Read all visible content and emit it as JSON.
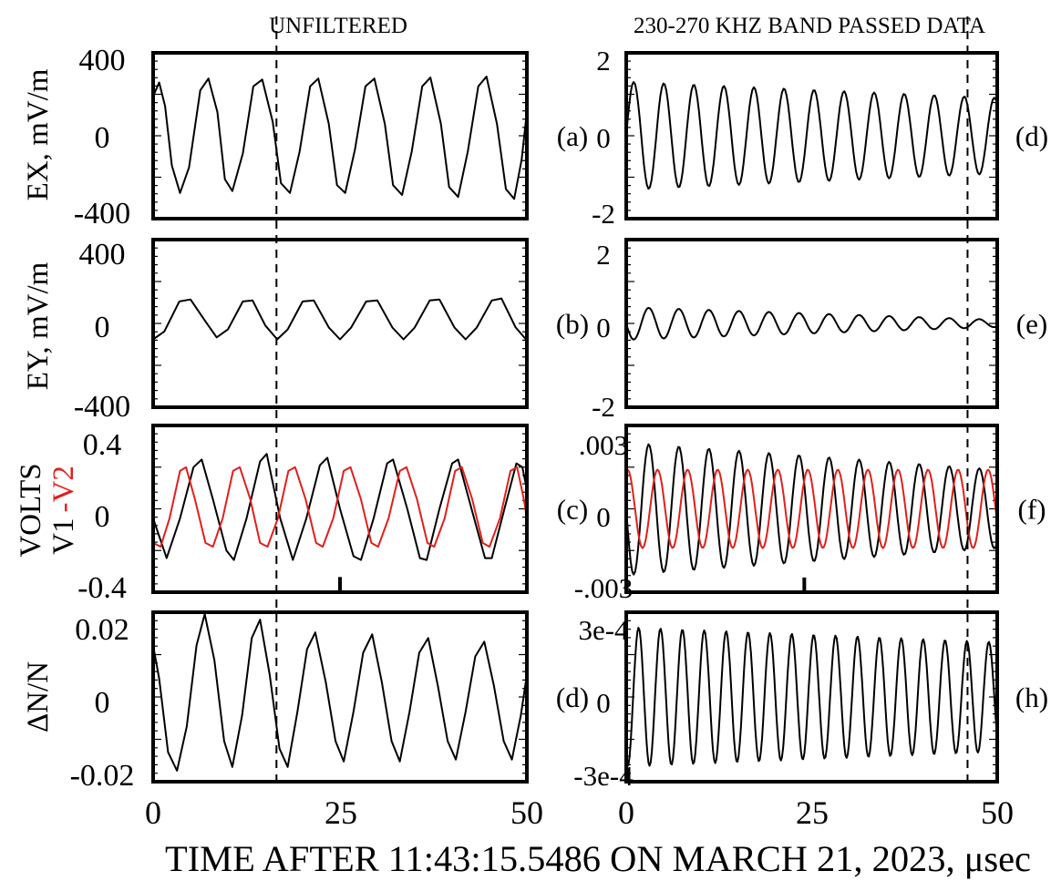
{
  "figure": {
    "left_title": "UNFILTERED",
    "right_title": "230-270 KHZ BAND PASSED DATA",
    "xlabel": "TIME AFTER 11:43:15.5486 ON MARCH 21, 2023, μsec",
    "xticks": [
      "0",
      "25",
      "50"
    ]
  },
  "rows": [
    {
      "ylabel": "EX, mV/m"
    },
    {
      "ylabel": "EY, mV/m"
    },
    {
      "ylabel_part1": "VOLTS",
      "ylabel_part2a": "V1",
      "ylabel_part2b": "-V2"
    },
    {
      "ylabel": "ΔN/N"
    }
  ],
  "panels": [
    {
      "id": "a",
      "label": "(a)",
      "yticks": [
        "400",
        "0",
        "-400"
      ]
    },
    {
      "id": "b",
      "label": "(b)",
      "yticks": [
        "400",
        "0",
        "-400"
      ]
    },
    {
      "id": "c",
      "label": "(c)",
      "yticks": [
        "0.4",
        "0",
        "-0.4"
      ]
    },
    {
      "id": "d1",
      "label": "(d)",
      "yticks": [
        "0.02",
        "0",
        "-0.02"
      ]
    },
    {
      "id": "d2",
      "label": "(d)",
      "yticks": [
        "2",
        "0",
        "-2"
      ]
    },
    {
      "id": "e",
      "label": "(e)",
      "yticks": [
        "2",
        "0",
        "-2"
      ]
    },
    {
      "id": "f",
      "label": "(f)",
      "yticks": [
        ".003",
        "0",
        "-.003"
      ]
    },
    {
      "id": "h",
      "label": "(h)",
      "yticks": [
        "3e-4",
        "0",
        "-3e-4"
      ]
    }
  ],
  "colors": {
    "v1": "#000000",
    "v2": "#e0201b",
    "axes": "#000000"
  },
  "chart_data": [
    {
      "type": "line",
      "panel": "a",
      "ylabel": "EX, mV/m",
      "xlim": [
        0,
        50
      ],
      "ylim": [
        -420,
        420
      ],
      "series": [
        {
          "values": [
            {
              "x": 0,
              "y": 200
            },
            {
              "x": 0.8,
              "y": 270
            },
            {
              "x": 1.6,
              "y": 150
            },
            {
              "x": 2.5,
              "y": -150
            },
            {
              "x": 3.6,
              "y": -290
            },
            {
              "x": 4.8,
              "y": -160
            },
            {
              "x": 6.3,
              "y": 230
            },
            {
              "x": 7.4,
              "y": 290
            },
            {
              "x": 8.6,
              "y": 120
            },
            {
              "x": 9.6,
              "y": -220
            },
            {
              "x": 10.6,
              "y": -280
            },
            {
              "x": 12,
              "y": -90
            },
            {
              "x": 13.4,
              "y": 250
            },
            {
              "x": 14.6,
              "y": 285
            },
            {
              "x": 16,
              "y": 70
            },
            {
              "x": 17.1,
              "y": -240
            },
            {
              "x": 18.3,
              "y": -290
            },
            {
              "x": 19.6,
              "y": -80
            },
            {
              "x": 21,
              "y": 250
            },
            {
              "x": 22.1,
              "y": 290
            },
            {
              "x": 23.5,
              "y": 60
            },
            {
              "x": 24.6,
              "y": -250
            },
            {
              "x": 25.7,
              "y": -290
            },
            {
              "x": 27,
              "y": -70
            },
            {
              "x": 28.4,
              "y": 250
            },
            {
              "x": 29.6,
              "y": 290
            },
            {
              "x": 31,
              "y": 60
            },
            {
              "x": 32.1,
              "y": -250
            },
            {
              "x": 33.3,
              "y": -300
            },
            {
              "x": 34.6,
              "y": -80
            },
            {
              "x": 36,
              "y": 250
            },
            {
              "x": 37.1,
              "y": 295
            },
            {
              "x": 38.5,
              "y": 60
            },
            {
              "x": 39.6,
              "y": -260
            },
            {
              "x": 40.8,
              "y": -310
            },
            {
              "x": 42.1,
              "y": -80
            },
            {
              "x": 43.5,
              "y": 250
            },
            {
              "x": 44.6,
              "y": 300
            },
            {
              "x": 46,
              "y": 60
            },
            {
              "x": 47.2,
              "y": -270
            },
            {
              "x": 48.3,
              "y": -320
            },
            {
              "x": 49.3,
              "y": -120
            },
            {
              "x": 50,
              "y": 120
            }
          ]
        }
      ]
    },
    {
      "type": "line",
      "panel": "b",
      "ylabel": "EY, mV/m",
      "xlim": [
        0,
        50
      ],
      "ylim": [
        -420,
        420
      ],
      "series": [
        {
          "values": [
            {
              "x": 0,
              "y": -80
            },
            {
              "x": 1.5,
              "y": -40
            },
            {
              "x": 3.5,
              "y": 110
            },
            {
              "x": 5,
              "y": 120
            },
            {
              "x": 7,
              "y": 10
            },
            {
              "x": 8.5,
              "y": -70
            },
            {
              "x": 10,
              "y": -30
            },
            {
              "x": 12,
              "y": 110
            },
            {
              "x": 13.3,
              "y": 115
            },
            {
              "x": 15,
              "y": -10
            },
            {
              "x": 16.6,
              "y": -80
            },
            {
              "x": 18,
              "y": -30
            },
            {
              "x": 20,
              "y": 110
            },
            {
              "x": 21.5,
              "y": 115
            },
            {
              "x": 23.5,
              "y": -20
            },
            {
              "x": 25,
              "y": -80
            },
            {
              "x": 26.5,
              "y": -20
            },
            {
              "x": 28.5,
              "y": 110
            },
            {
              "x": 30,
              "y": 115
            },
            {
              "x": 32,
              "y": -20
            },
            {
              "x": 33.5,
              "y": -80
            },
            {
              "x": 35,
              "y": -20
            },
            {
              "x": 37,
              "y": 115
            },
            {
              "x": 38.3,
              "y": 120
            },
            {
              "x": 40.3,
              "y": -20
            },
            {
              "x": 41.8,
              "y": -80
            },
            {
              "x": 43.3,
              "y": -20
            },
            {
              "x": 45.3,
              "y": 115
            },
            {
              "x": 46.6,
              "y": 125
            },
            {
              "x": 48.5,
              "y": -20
            },
            {
              "x": 50,
              "y": -85
            }
          ]
        }
      ]
    },
    {
      "type": "line",
      "panel": "c",
      "ylabel": "VOLTS V1 -V2",
      "xlim": [
        0,
        50
      ],
      "ylim": [
        -0.44,
        0.44
      ],
      "series": [
        {
          "name": "V1",
          "values": [
            {
              "x": 0,
              "y": -0.05
            },
            {
              "x": 1.8,
              "y": -0.26
            },
            {
              "x": 3.6,
              "y": -0.05
            },
            {
              "x": 5.4,
              "y": 0.22
            },
            {
              "x": 6.5,
              "y": 0.26
            },
            {
              "x": 8,
              "y": 0.05
            },
            {
              "x": 9.8,
              "y": -0.22
            },
            {
              "x": 10.8,
              "y": -0.27
            },
            {
              "x": 12.5,
              "y": -0.05
            },
            {
              "x": 14.3,
              "y": 0.25
            },
            {
              "x": 15.2,
              "y": 0.29
            },
            {
              "x": 17,
              "y": -0.05
            },
            {
              "x": 18.7,
              "y": -0.27
            },
            {
              "x": 20.5,
              "y": -0.05
            },
            {
              "x": 22.3,
              "y": 0.23
            },
            {
              "x": 23.3,
              "y": 0.27
            },
            {
              "x": 25,
              "y": 0
            },
            {
              "x": 26.8,
              "y": -0.25
            },
            {
              "x": 27.8,
              "y": -0.27
            },
            {
              "x": 29.5,
              "y": -0.05
            },
            {
              "x": 31.3,
              "y": 0.24
            },
            {
              "x": 32.1,
              "y": 0.26
            },
            {
              "x": 34,
              "y": 0
            },
            {
              "x": 35.7,
              "y": -0.26
            },
            {
              "x": 36.6,
              "y": -0.27
            },
            {
              "x": 38.3,
              "y": 0
            },
            {
              "x": 40,
              "y": 0.24
            },
            {
              "x": 40.8,
              "y": 0.26
            },
            {
              "x": 42.6,
              "y": 0
            },
            {
              "x": 44.4,
              "y": -0.26
            },
            {
              "x": 45.3,
              "y": -0.26
            },
            {
              "x": 47,
              "y": 0
            },
            {
              "x": 48.6,
              "y": 0.24
            },
            {
              "x": 49.4,
              "y": 0.22
            },
            {
              "x": 50,
              "y": 0.1
            }
          ]
        },
        {
          "name": "-V2",
          "values": [
            {
              "x": 0,
              "y": -0.18
            },
            {
              "x": 1,
              "y": -0.2
            },
            {
              "x": 2.2,
              "y": -0.05
            },
            {
              "x": 3.6,
              "y": 0.2
            },
            {
              "x": 4.4,
              "y": 0.22
            },
            {
              "x": 5.6,
              "y": 0.05
            },
            {
              "x": 7,
              "y": -0.18
            },
            {
              "x": 8,
              "y": -0.2
            },
            {
              "x": 9.3,
              "y": -0.05
            },
            {
              "x": 10.7,
              "y": 0.2
            },
            {
              "x": 11.6,
              "y": 0.22
            },
            {
              "x": 13,
              "y": 0.05
            },
            {
              "x": 14.3,
              "y": -0.18
            },
            {
              "x": 15.3,
              "y": -0.2
            },
            {
              "x": 16.7,
              "y": -0.05
            },
            {
              "x": 18.1,
              "y": 0.2
            },
            {
              "x": 19,
              "y": 0.22
            },
            {
              "x": 20.4,
              "y": 0.05
            },
            {
              "x": 21.8,
              "y": -0.18
            },
            {
              "x": 22.7,
              "y": -0.2
            },
            {
              "x": 24.1,
              "y": -0.05
            },
            {
              "x": 25.5,
              "y": 0.2
            },
            {
              "x": 26.4,
              "y": 0.22
            },
            {
              "x": 27.8,
              "y": 0.05
            },
            {
              "x": 29.2,
              "y": -0.18
            },
            {
              "x": 30.1,
              "y": -0.2
            },
            {
              "x": 31.5,
              "y": -0.05
            },
            {
              "x": 33,
              "y": 0.2
            },
            {
              "x": 33.9,
              "y": 0.22
            },
            {
              "x": 35.3,
              "y": 0.05
            },
            {
              "x": 36.7,
              "y": -0.18
            },
            {
              "x": 37.6,
              "y": -0.2
            },
            {
              "x": 39,
              "y": -0.05
            },
            {
              "x": 40.4,
              "y": 0.2
            },
            {
              "x": 41.3,
              "y": 0.22
            },
            {
              "x": 42.7,
              "y": 0.05
            },
            {
              "x": 44.1,
              "y": -0.18
            },
            {
              "x": 45,
              "y": -0.2
            },
            {
              "x": 46.4,
              "y": -0.05
            },
            {
              "x": 47.8,
              "y": 0.2
            },
            {
              "x": 48.7,
              "y": 0.22
            },
            {
              "x": 49.6,
              "y": 0.05
            },
            {
              "x": 50,
              "y": -0.05
            }
          ]
        }
      ],
      "markers": [
        {
          "x": 25,
          "y_from": -0.43,
          "y_to": -0.36
        }
      ]
    },
    {
      "type": "line",
      "panel": "d",
      "ylabel": "ΔN/N",
      "xlim": [
        0,
        50
      ],
      "ylim": [
        -0.023,
        0.023
      ],
      "series": [
        {
          "values": [
            {
              "x": 0,
              "y": 0.014
            },
            {
              "x": 0.8,
              "y": 0.005
            },
            {
              "x": 2,
              "y": -0.015
            },
            {
              "x": 3.2,
              "y": -0.02
            },
            {
              "x": 4.5,
              "y": -0.008
            },
            {
              "x": 5.8,
              "y": 0.014
            },
            {
              "x": 6.9,
              "y": 0.0225
            },
            {
              "x": 8.2,
              "y": 0.01
            },
            {
              "x": 9.5,
              "y": -0.012
            },
            {
              "x": 10.6,
              "y": -0.019
            },
            {
              "x": 11.9,
              "y": -0.005
            },
            {
              "x": 13.2,
              "y": 0.016
            },
            {
              "x": 14.3,
              "y": 0.021
            },
            {
              "x": 15.6,
              "y": 0.006
            },
            {
              "x": 16.9,
              "y": -0.014
            },
            {
              "x": 18,
              "y": -0.019
            },
            {
              "x": 19.3,
              "y": -0.004
            },
            {
              "x": 20.6,
              "y": 0.013
            },
            {
              "x": 21.7,
              "y": 0.0175
            },
            {
              "x": 23.1,
              "y": 0.004
            },
            {
              "x": 24.4,
              "y": -0.012
            },
            {
              "x": 25.5,
              "y": -0.0175
            },
            {
              "x": 26.8,
              "y": -0.004
            },
            {
              "x": 28.1,
              "y": 0.012
            },
            {
              "x": 29.3,
              "y": 0.017
            },
            {
              "x": 30.6,
              "y": 0.004
            },
            {
              "x": 31.9,
              "y": -0.012
            },
            {
              "x": 33,
              "y": -0.0175
            },
            {
              "x": 34.3,
              "y": -0.004
            },
            {
              "x": 35.6,
              "y": 0.012
            },
            {
              "x": 36.8,
              "y": 0.016
            },
            {
              "x": 38.1,
              "y": 0.003
            },
            {
              "x": 39.4,
              "y": -0.012
            },
            {
              "x": 40.5,
              "y": -0.017
            },
            {
              "x": 41.8,
              "y": -0.004
            },
            {
              "x": 43.1,
              "y": 0.011
            },
            {
              "x": 44.3,
              "y": 0.015
            },
            {
              "x": 45.6,
              "y": 0.003
            },
            {
              "x": 46.9,
              "y": -0.012
            },
            {
              "x": 48,
              "y": -0.017
            },
            {
              "x": 49.2,
              "y": -0.005
            },
            {
              "x": 50,
              "y": 0.006
            }
          ]
        }
      ]
    },
    {
      "type": "line",
      "panel": "d-right",
      "ylabel": "",
      "xlim": [
        0,
        50
      ],
      "ylim": [
        -2.3,
        2.3
      ],
      "sine": {
        "period": 4.05,
        "amp": [
          1.5,
          1.05
        ],
        "dx": 0.2
      }
    },
    {
      "type": "line",
      "panel": "e",
      "ylabel": "",
      "xlim": [
        0,
        50
      ],
      "ylim": [
        -2.3,
        2.3
      ],
      "sine": {
        "period": 4.05,
        "amp": [
          0.45,
          0.1
        ],
        "dx": 0.2,
        "phase": 3.14
      }
    },
    {
      "type": "line",
      "panel": "f",
      "ylabel": "",
      "xlim": [
        0,
        50
      ],
      "ylim": [
        -0.0034,
        0.0034
      ],
      "sine_series": [
        {
          "name": "V1",
          "period": 4.05,
          "amp": [
            0.0027,
            0.0016
          ],
          "dx": 0.2,
          "phase": 3.14
        },
        {
          "name": "-V2",
          "period": 4.05,
          "amp": [
            0.0016,
            0.0016
          ],
          "dx": 0.2,
          "phase": 1.3
        }
      ],
      "markers": [
        {
          "x": 24,
          "y_from": -0.0034,
          "y_to": -0.0028
        }
      ]
    },
    {
      "type": "line",
      "panel": "h",
      "ylabel": "",
      "xlim": [
        0,
        50
      ],
      "ylim": [
        -0.00034,
        0.00034
      ],
      "sine": {
        "period": 2.95,
        "amp": [
          0.00028,
          0.00022
        ],
        "dx": 0.15,
        "phase": 4.3
      }
    }
  ],
  "dashed_lines": [
    {
      "column": "left",
      "x": 16.5
    },
    {
      "column": "right",
      "x": 46
    }
  ]
}
